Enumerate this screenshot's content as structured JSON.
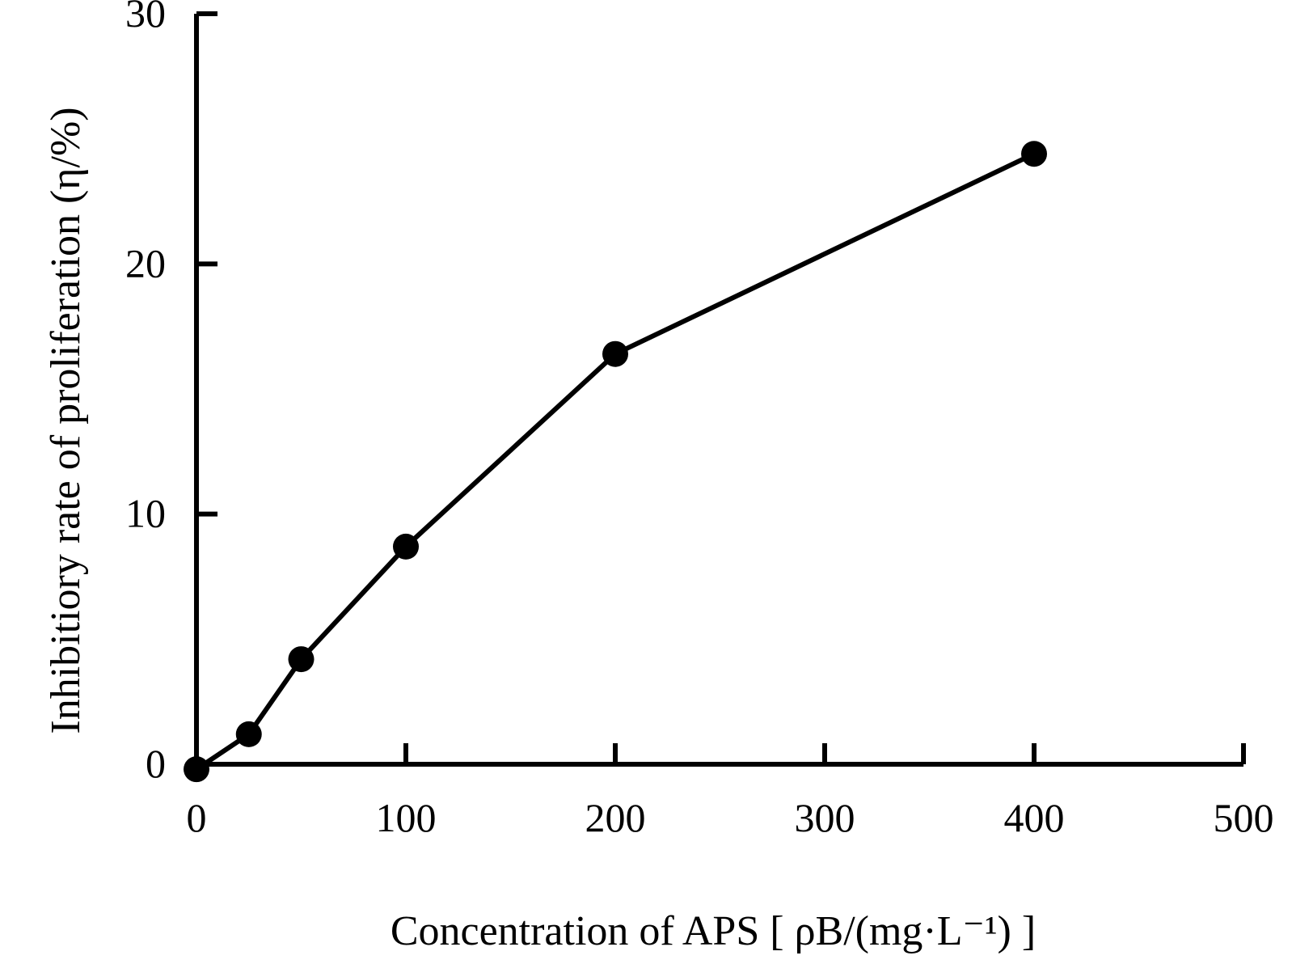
{
  "chart_data": {
    "type": "line",
    "title": "",
    "xlabel": "Concentration of APS [ ρB/(mg·L⁻¹) ]",
    "ylabel": "Inhibitiory rate of proliferation (η/%)",
    "xlim": [
      0,
      500
    ],
    "ylim": [
      0,
      30
    ],
    "xticks": [
      0,
      100,
      200,
      300,
      400,
      500
    ],
    "yticks": [
      0,
      10,
      20,
      30
    ],
    "grid": false,
    "legend": "none",
    "series": [
      {
        "x": [
          0,
          25,
          50,
          100,
          200,
          400
        ],
        "y": [
          -0.2,
          1.2,
          4.2,
          8.7,
          16.4,
          24.4
        ],
        "color": "#000000",
        "marker": "filled-circle"
      }
    ]
  }
}
